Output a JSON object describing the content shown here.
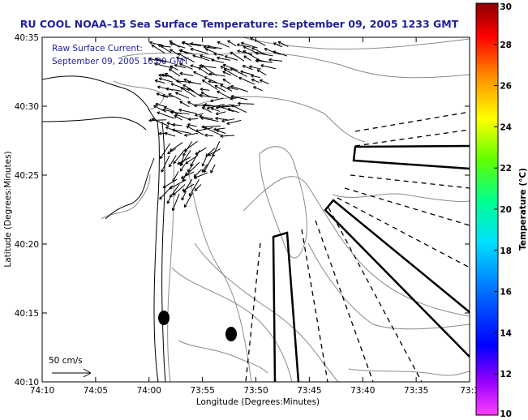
{
  "title": "RU COOL  NOAA–15  Sea Surface Temperature:  September 09, 2005 1233 GMT",
  "annotation": {
    "line1": "Raw Surface Current:",
    "line2": "September 09, 2005 16:00 GMT"
  },
  "scale_label": "50 cm/s",
  "x_axis": {
    "label": "Longitude (Degrees:Minutes)",
    "ticks": [
      "74:10",
      "74:05",
      "74:00",
      "73:55",
      "73:50",
      "73:45",
      "73:40",
      "73:35",
      "73:3"
    ]
  },
  "y_axis": {
    "label": "Latitude (Degrees:Minutes)",
    "ticks": [
      "40:35",
      "40:30",
      "40:25",
      "40:20",
      "40:15",
      "40:10"
    ]
  },
  "colorbar": {
    "label": "Temperature (°C)",
    "ticks": [
      "30",
      "28",
      "26",
      "24",
      "22",
      "20",
      "18",
      "16",
      "14",
      "12",
      "10"
    ],
    "min": 10,
    "max": 30
  },
  "colors": {
    "title": "#1f1fa0",
    "contour": "#8a8a8a",
    "coast": "#000000"
  }
}
